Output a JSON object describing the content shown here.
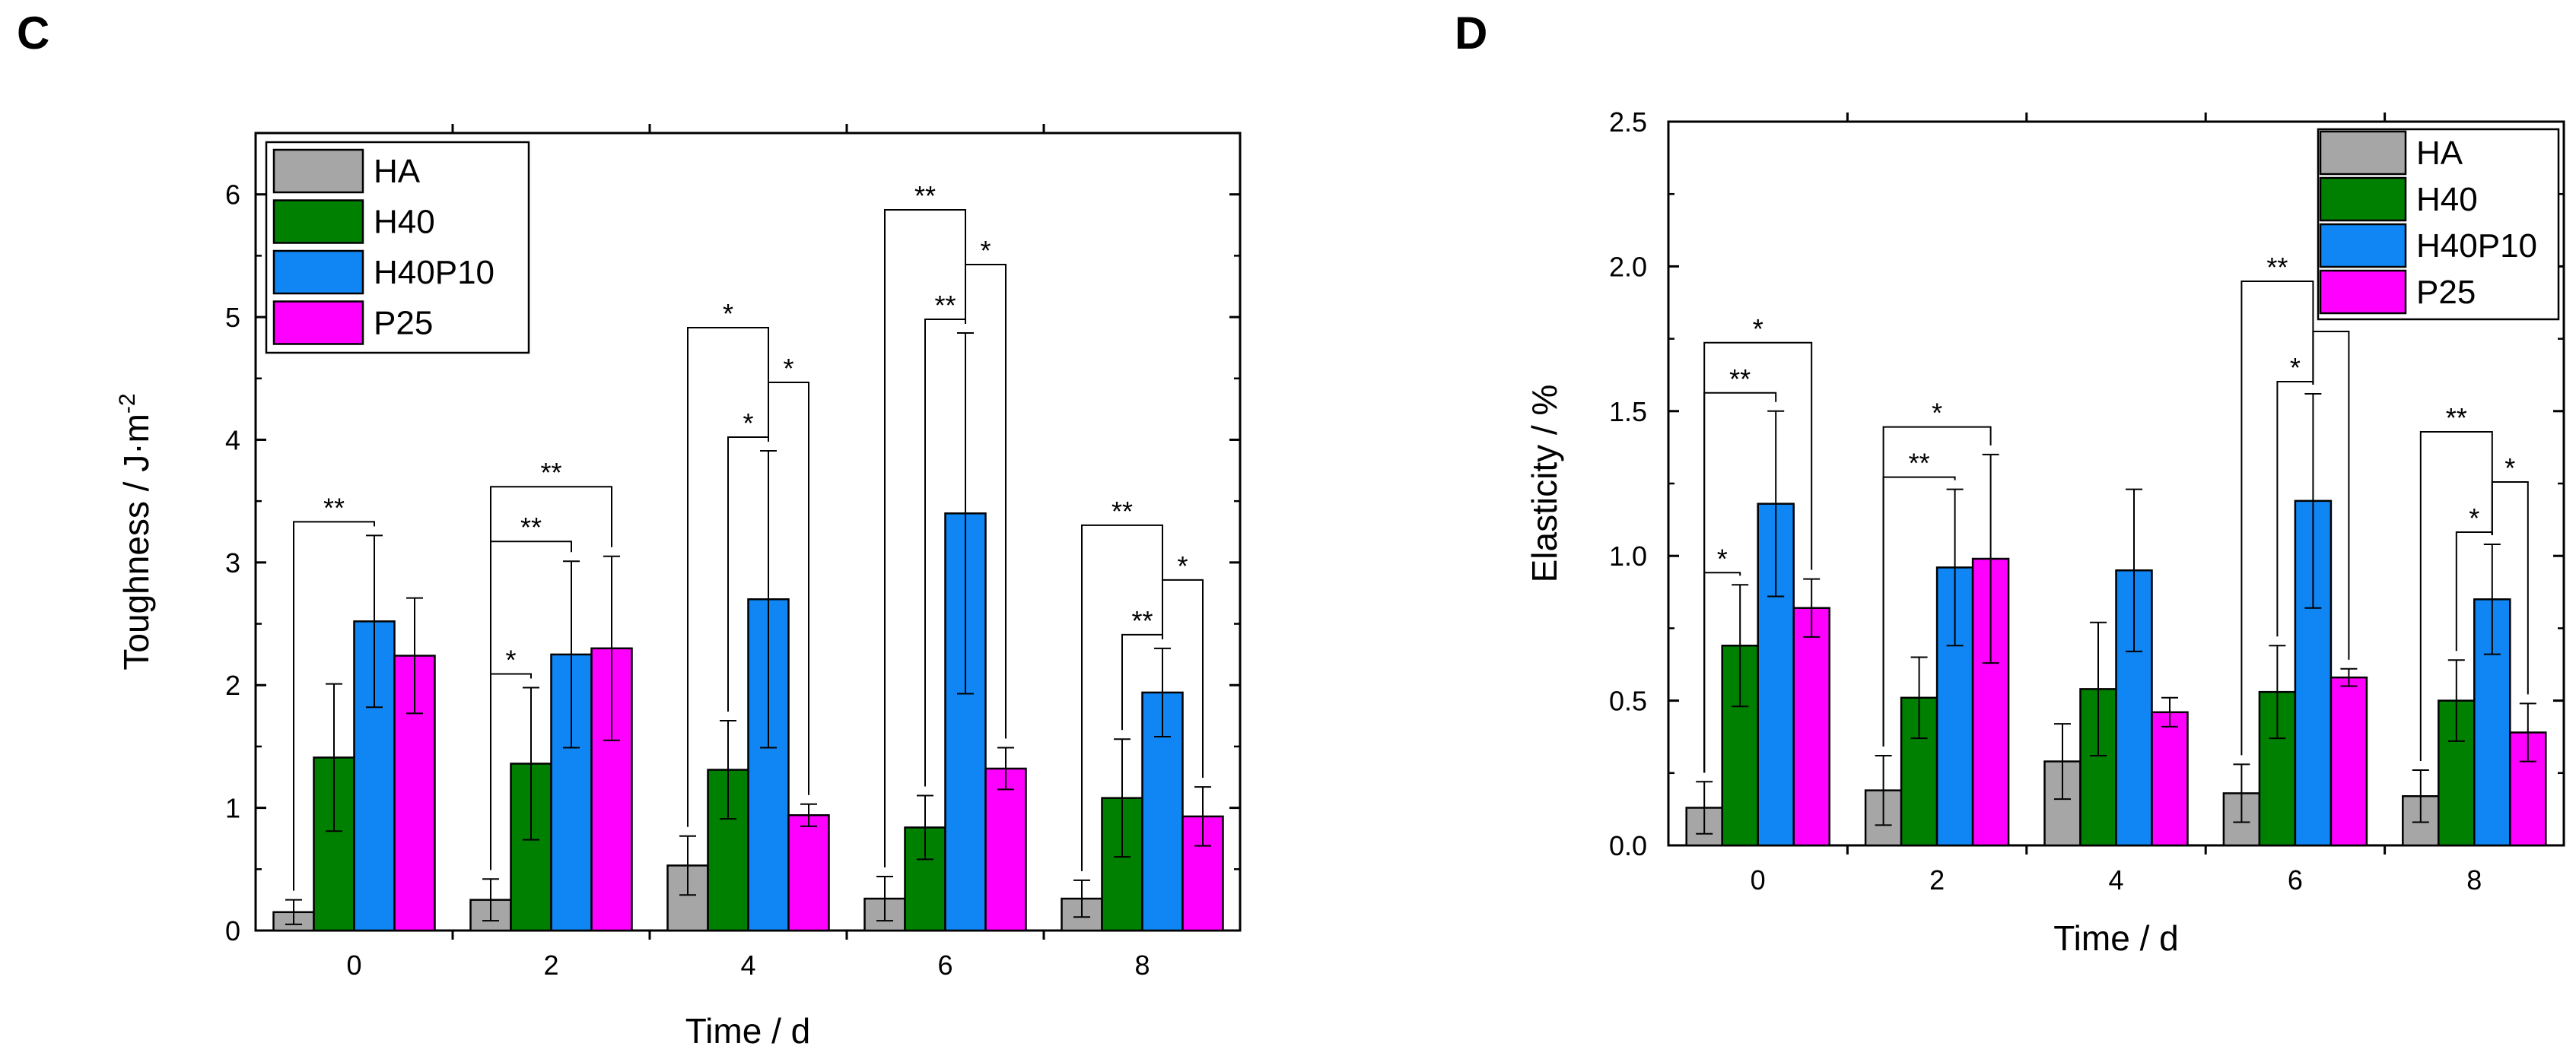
{
  "chart_data": [
    {
      "panel": "C",
      "type": "bar",
      "title": "",
      "xlabel": "Time / d",
      "ylabel": "Toughness / J·m-2",
      "ylabel_main": "Toughness / J",
      "ylabel_dot": "·",
      "ylabel_unit": "m",
      "ylabel_sup": "-2",
      "categories": [
        "0",
        "2",
        "4",
        "6",
        "8"
      ],
      "ylim": [
        0,
        6.5
      ],
      "yticks": [
        "0",
        "1",
        "2",
        "3",
        "4",
        "5",
        "6"
      ],
      "legend_position": "top-left",
      "grid": false,
      "series": [
        {
          "name": "HA",
          "color": "#a6a6a6",
          "values": [
            0.15,
            0.25,
            0.53,
            0.26,
            0.26
          ],
          "errors": [
            0.1,
            0.17,
            0.24,
            0.18,
            0.15
          ]
        },
        {
          "name": "H40",
          "color": "#008000",
          "values": [
            1.41,
            1.36,
            1.31,
            0.84,
            1.08
          ],
          "errors": [
            0.6,
            0.62,
            0.4,
            0.26,
            0.48
          ]
        },
        {
          "name": "H40P10",
          "color": "#0f86f3",
          "values": [
            2.52,
            2.25,
            2.7,
            3.4,
            1.94
          ],
          "errors": [
            0.7,
            0.76,
            1.21,
            1.47,
            0.36
          ]
        },
        {
          "name": "P25",
          "color": "#ff00ff",
          "values": [
            2.24,
            2.3,
            0.94,
            1.32,
            0.93
          ],
          "errors": [
            0.47,
            0.75,
            0.09,
            0.17,
            0.24
          ]
        }
      ],
      "significance": [
        {
          "group": 0,
          "from": 0,
          "to": 2,
          "label": "**"
        },
        {
          "group": 1,
          "from": 0,
          "to": 1,
          "label": "*"
        },
        {
          "group": 1,
          "from": 0,
          "to": 2,
          "label": "**"
        },
        {
          "group": 1,
          "from": 0,
          "to": 3,
          "label": "**"
        },
        {
          "group": 2,
          "from": 0,
          "to": 2,
          "label": "*"
        },
        {
          "group": 2,
          "from": 1,
          "to": 2,
          "label": "*"
        },
        {
          "group": 2,
          "from": 2,
          "to": 3,
          "label": "*"
        },
        {
          "group": 3,
          "from": 0,
          "to": 2,
          "label": "**"
        },
        {
          "group": 3,
          "from": 1,
          "to": 2,
          "label": "**"
        },
        {
          "group": 3,
          "from": 2,
          "to": 3,
          "label": "*"
        },
        {
          "group": 4,
          "from": 0,
          "to": 2,
          "label": "**"
        },
        {
          "group": 4,
          "from": 1,
          "to": 2,
          "label": "**"
        },
        {
          "group": 4,
          "from": 2,
          "to": 3,
          "label": "*"
        }
      ]
    },
    {
      "panel": "D",
      "type": "bar",
      "title": "",
      "xlabel": "Time / d",
      "ylabel": "Elasticity / %",
      "categories": [
        "0",
        "2",
        "4",
        "6",
        "8"
      ],
      "ylim": [
        0,
        2.5
      ],
      "yticks": [
        "0.0",
        "0.5",
        "1.0",
        "1.5",
        "2.0",
        "2.5"
      ],
      "legend_position": "top-right",
      "grid": false,
      "series": [
        {
          "name": "HA",
          "color": "#a6a6a6",
          "values": [
            0.13,
            0.19,
            0.29,
            0.18,
            0.17
          ],
          "errors": [
            0.09,
            0.12,
            0.13,
            0.1,
            0.09
          ]
        },
        {
          "name": "H40",
          "color": "#008000",
          "values": [
            0.69,
            0.51,
            0.54,
            0.53,
            0.5
          ],
          "errors": [
            0.21,
            0.14,
            0.23,
            0.16,
            0.14
          ]
        },
        {
          "name": "H40P10",
          "color": "#0f86f3",
          "values": [
            1.18,
            0.96,
            0.95,
            1.19,
            0.85
          ],
          "errors": [
            0.32,
            0.27,
            0.28,
            0.37,
            0.19
          ]
        },
        {
          "name": "P25",
          "color": "#ff00ff",
          "values": [
            0.82,
            0.99,
            0.46,
            0.58,
            0.39
          ],
          "errors": [
            0.1,
            0.36,
            0.05,
            0.03,
            0.1
          ]
        }
      ],
      "significance": [
        {
          "group": 0,
          "from": 0,
          "to": 1,
          "label": "*"
        },
        {
          "group": 0,
          "from": 0,
          "to": 2,
          "label": "**"
        },
        {
          "group": 0,
          "from": 0,
          "to": 3,
          "label": "*"
        },
        {
          "group": 1,
          "from": 0,
          "to": 2,
          "label": "**"
        },
        {
          "group": 1,
          "from": 0,
          "to": 3,
          "label": "*"
        },
        {
          "group": 3,
          "from": 0,
          "to": 2,
          "label": "**"
        },
        {
          "group": 3,
          "from": 1,
          "to": 2,
          "label": "*"
        },
        {
          "group": 3,
          "from": 2,
          "to": 3,
          "label": "*"
        },
        {
          "group": 4,
          "from": 0,
          "to": 2,
          "label": "**"
        },
        {
          "group": 4,
          "from": 1,
          "to": 2,
          "label": "*"
        },
        {
          "group": 4,
          "from": 2,
          "to": 3,
          "label": "*"
        }
      ]
    }
  ]
}
